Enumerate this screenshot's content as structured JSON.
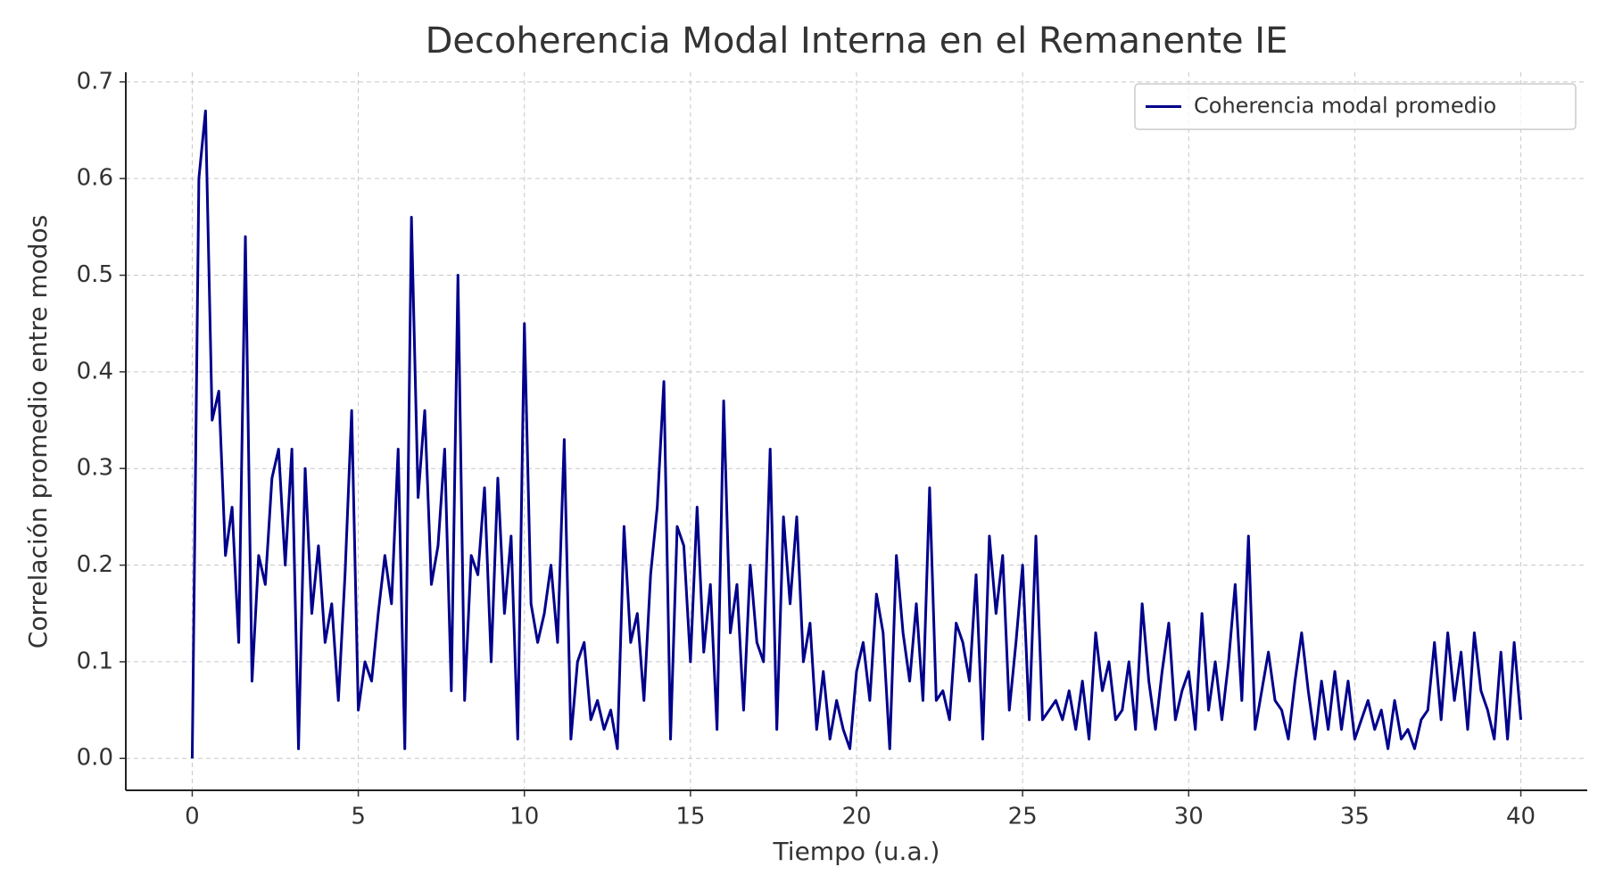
{
  "chart_data": {
    "type": "line",
    "title": "Decoherencia Modal Interna en el Remanente IE",
    "xlabel": "Tiempo (u.a.)",
    "ylabel": "Correlación promedio entre modos",
    "x": [
      0,
      0.2,
      0.4,
      0.6,
      0.8,
      1,
      1.2,
      1.4,
      1.6,
      1.8,
      2,
      2.2,
      2.4,
      2.6,
      2.8,
      3,
      3.2,
      3.4,
      3.6,
      3.8,
      4,
      4.2,
      4.4,
      4.6,
      4.8,
      5,
      5.2,
      5.4,
      5.6,
      5.8,
      6,
      6.2,
      6.4,
      6.6,
      6.8,
      7,
      7.2,
      7.4,
      7.6,
      7.8,
      8,
      8.2,
      8.4,
      8.6,
      8.8,
      9,
      9.2,
      9.4,
      9.6,
      9.8,
      10,
      10.2,
      10.4,
      10.6,
      10.8,
      11,
      11.2,
      11.4,
      11.6,
      11.8,
      12,
      12.2,
      12.4,
      12.6,
      12.8,
      13,
      13.2,
      13.4,
      13.6,
      13.8,
      14,
      14.2,
      14.4,
      14.6,
      14.8,
      15,
      15.2,
      15.4,
      15.6,
      15.8,
      16,
      16.2,
      16.4,
      16.6,
      16.8,
      17,
      17.2,
      17.4,
      17.6,
      17.8,
      18,
      18.2,
      18.4,
      18.6,
      18.8,
      19,
      19.2,
      19.4,
      19.6,
      19.8,
      20,
      20.2,
      20.4,
      20.6,
      20.8,
      21,
      21.2,
      21.4,
      21.6,
      21.8,
      22,
      22.2,
      22.4,
      22.6,
      22.8,
      23,
      23.2,
      23.4,
      23.6,
      23.8,
      24,
      24.2,
      24.4,
      24.6,
      24.8,
      25,
      25.2,
      25.4,
      25.6,
      25.8,
      26,
      26.2,
      26.4,
      26.6,
      26.8,
      27,
      27.2,
      27.4,
      27.6,
      27.8,
      28,
      28.2,
      28.4,
      28.6,
      28.8,
      29,
      29.2,
      29.4,
      29.6,
      29.8,
      30,
      30.2,
      30.4,
      30.6,
      30.8,
      31,
      31.2,
      31.4,
      31.6,
      31.8,
      32,
      32.2,
      32.4,
      32.6,
      32.8,
      33,
      33.2,
      33.4,
      33.6,
      33.8,
      34,
      34.2,
      34.4,
      34.6,
      34.8,
      35,
      35.2,
      35.4,
      35.6,
      35.8,
      36,
      36.2,
      36.4,
      36.6,
      36.8,
      37,
      37.2,
      37.4,
      37.6,
      37.8,
      38,
      38.2,
      38.4,
      38.6,
      38.8,
      39,
      39.2,
      39.4,
      39.6,
      39.8,
      40
    ],
    "series": [
      {
        "name": "Coherencia modal promedio",
        "color": "#00008b",
        "values": [
          0,
          0.6,
          0.67,
          0.35,
          0.38,
          0.21,
          0.26,
          0.12,
          0.54,
          0.08,
          0.21,
          0.18,
          0.29,
          0.32,
          0.2,
          0.32,
          0.01,
          0.3,
          0.15,
          0.22,
          0.12,
          0.16,
          0.06,
          0.19,
          0.36,
          0.05,
          0.1,
          0.08,
          0.15,
          0.21,
          0.16,
          0.32,
          0.01,
          0.56,
          0.27,
          0.36,
          0.18,
          0.22,
          0.32,
          0.07,
          0.5,
          0.06,
          0.21,
          0.19,
          0.28,
          0.1,
          0.29,
          0.15,
          0.23,
          0.02,
          0.45,
          0.16,
          0.12,
          0.15,
          0.2,
          0.12,
          0.33,
          0.02,
          0.1,
          0.12,
          0.04,
          0.06,
          0.03,
          0.05,
          0.01,
          0.24,
          0.12,
          0.15,
          0.06,
          0.19,
          0.26,
          0.39,
          0.02,
          0.24,
          0.22,
          0.1,
          0.26,
          0.11,
          0.18,
          0.03,
          0.37,
          0.13,
          0.18,
          0.05,
          0.2,
          0.12,
          0.1,
          0.32,
          0.03,
          0.25,
          0.16,
          0.25,
          0.1,
          0.14,
          0.03,
          0.09,
          0.02,
          0.06,
          0.03,
          0.01,
          0.09,
          0.12,
          0.06,
          0.17,
          0.13,
          0.01,
          0.21,
          0.13,
          0.08,
          0.16,
          0.06,
          0.28,
          0.06,
          0.07,
          0.04,
          0.14,
          0.12,
          0.08,
          0.19,
          0.02,
          0.23,
          0.15,
          0.21,
          0.05,
          0.12,
          0.2,
          0.04,
          0.23,
          0.04,
          0.05,
          0.06,
          0.04,
          0.07,
          0.03,
          0.08,
          0.02,
          0.13,
          0.07,
          0.1,
          0.04,
          0.05,
          0.1,
          0.03,
          0.16,
          0.08,
          0.03,
          0.09,
          0.14,
          0.04,
          0.07,
          0.09,
          0.03,
          0.15,
          0.05,
          0.1,
          0.04,
          0.1,
          0.18,
          0.06,
          0.23,
          0.03,
          0.07,
          0.11,
          0.06,
          0.05,
          0.02,
          0.08,
          0.13,
          0.07,
          0.02,
          0.08,
          0.03,
          0.09,
          0.03,
          0.08,
          0.02,
          0.04,
          0.06,
          0.03,
          0.05,
          0.01,
          0.06,
          0.02,
          0.03,
          0.01,
          0.04,
          0.05,
          0.12,
          0.04,
          0.13,
          0.06,
          0.11,
          0.03,
          0.13,
          0.07,
          0.05,
          0.02,
          0.11,
          0.02,
          0.12,
          0.04
        ]
      }
    ],
    "xlim": [
      -2,
      42
    ],
    "ylim": [
      -0.033,
      0.71
    ],
    "xticks": [
      0,
      5,
      10,
      15,
      20,
      25,
      30,
      35,
      40
    ],
    "yticks": [
      {
        "value": 0,
        "label": "0.0"
      },
      0.1,
      0.2,
      0.3,
      0.4,
      0.5,
      0.6,
      0.7
    ],
    "grid": true,
    "legend": "upper right"
  }
}
